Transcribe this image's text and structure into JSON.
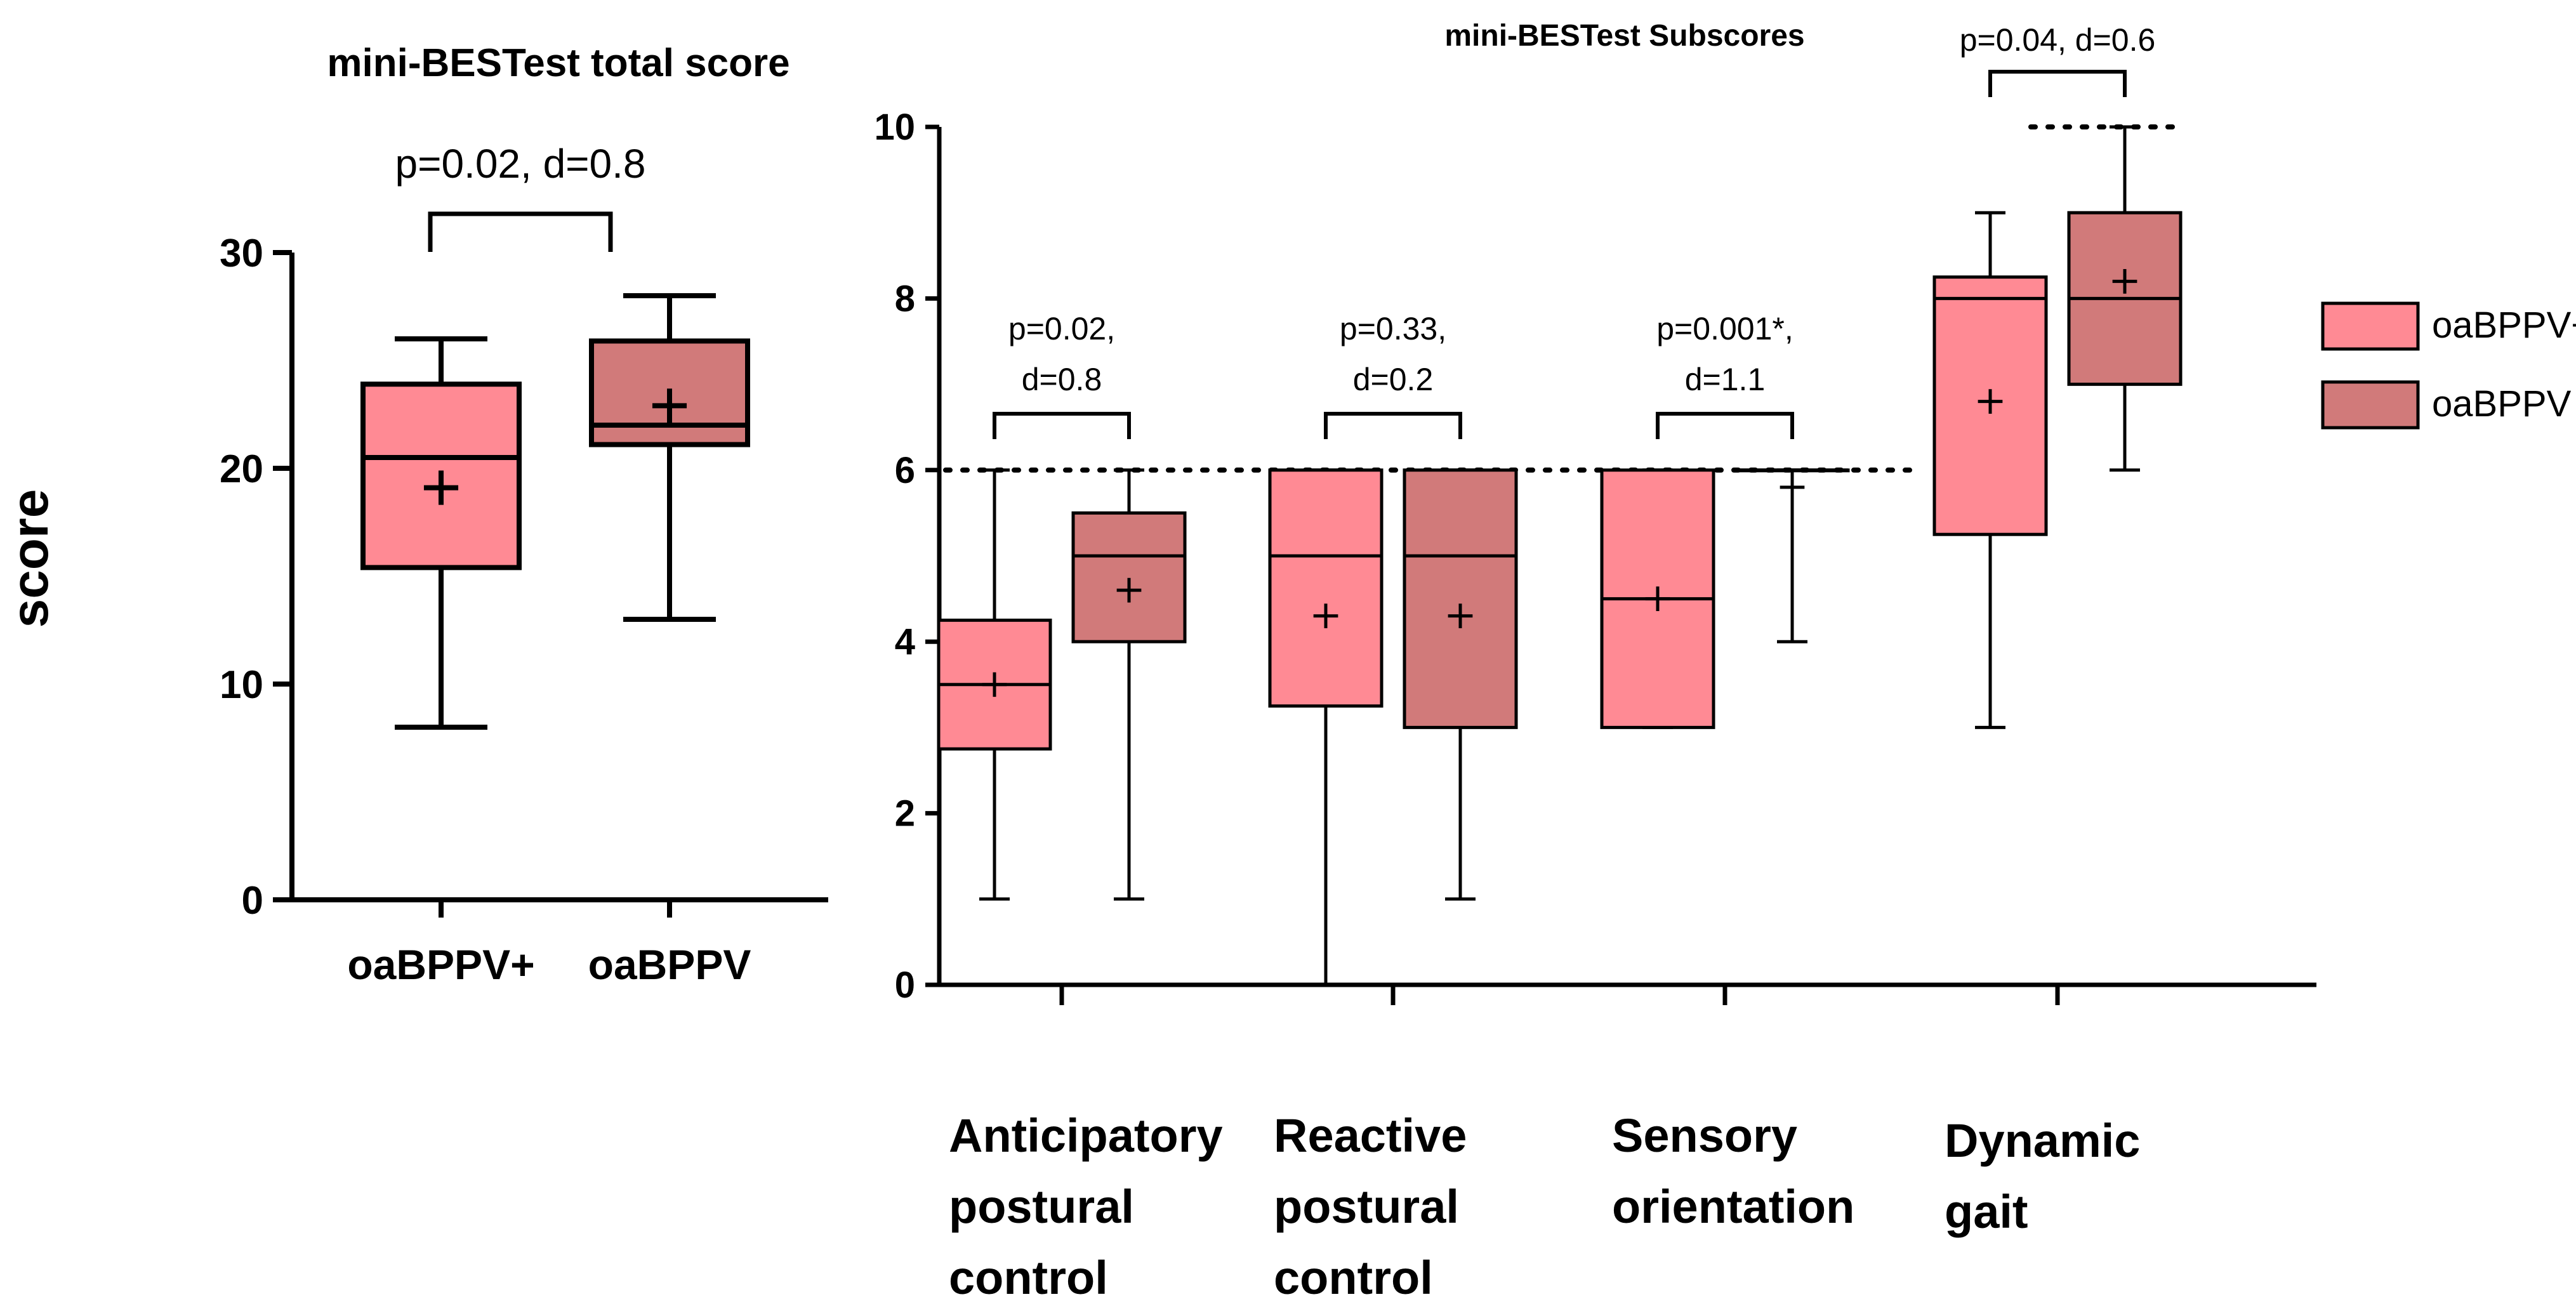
{
  "y_axis_label": "score",
  "colors": {
    "series_plus": "#ff8a94",
    "series_minus": "#d17a7a",
    "stroke": "#000000"
  },
  "chart_data": [
    {
      "type": "box",
      "title": "mini-BESTest total score",
      "ylabel": "score",
      "ylim": [
        0,
        30
      ],
      "yticks": [
        0,
        10,
        20,
        30
      ],
      "categories": [
        "oaBPPV+",
        "oaBPPV"
      ],
      "series": [
        {
          "name": "oaBPPV+",
          "min": 8,
          "q1": 15.4,
          "median": 20.5,
          "q3": 23.9,
          "max": 26,
          "mean": 19.1
        },
        {
          "name": "oaBPPV",
          "min": 13,
          "q1": 21.1,
          "median": 22,
          "q3": 25.9,
          "max": 28,
          "mean": 22.9
        }
      ],
      "annotations": [
        {
          "lines": [
            "p=0.02, d=0.8"
          ]
        }
      ]
    },
    {
      "type": "box",
      "title": "mini-BESTest Subscores",
      "ylim": [
        0,
        10
      ],
      "yticks": [
        0,
        2,
        4,
        6,
        8,
        10
      ],
      "categories": [
        "Anticipatory postural control",
        "Reactive postural control",
        "Sensory orientation",
        "Dynamic gait"
      ],
      "category_lines": [
        [
          "Anticipatory",
          "postural",
          "control"
        ],
        [
          "Reactive",
          "postural",
          "control"
        ],
        [
          "Sensory",
          "orientation"
        ],
        [
          "Dynamic",
          "gait"
        ]
      ],
      "max_score_lines": [
        6,
        6,
        6,
        10
      ],
      "legend": {
        "position": "right",
        "entries": [
          "oaBPPV+",
          "oaBPPV"
        ]
      },
      "series": [
        {
          "name": "oaBPPV+",
          "boxes": [
            {
              "min": 1,
              "q1": 2.75,
              "median": 3.5,
              "q3": 4.25,
              "max": 6,
              "mean": 3.5
            },
            {
              "min": 0,
              "q1": 3.25,
              "median": 5,
              "q3": 6,
              "max": 6,
              "mean": 4.3
            },
            {
              "min": 3,
              "q1": 3,
              "median": 4.5,
              "q3": 6,
              "max": 6,
              "mean": 4.5
            },
            {
              "min": 3,
              "q1": 5.25,
              "median": 8,
              "q3": 8.25,
              "max": 9,
              "mean": 6.8
            }
          ]
        },
        {
          "name": "oaBPPV",
          "boxes": [
            {
              "min": 1,
              "q1": 4,
              "median": 5,
              "q3": 5.5,
              "max": 6,
              "mean": 4.6
            },
            {
              "min": 1,
              "q1": 3,
              "median": 5,
              "q3": 6,
              "max": 6,
              "mean": 4.3
            },
            {
              "min": 4,
              "q1": 6,
              "median": 6,
              "q3": 6,
              "max": 6,
              "mean": 5.8
            },
            {
              "min": 6,
              "q1": 7,
              "median": 8,
              "q3": 9,
              "max": 10,
              "mean": 8.2
            }
          ]
        }
      ],
      "annotations": [
        {
          "lines": [
            "p=0.02,",
            "d=0.8"
          ]
        },
        {
          "lines": [
            "p=0.33,",
            "d=0.2"
          ]
        },
        {
          "lines": [
            "p=0.001*,",
            "d=1.1"
          ]
        },
        {
          "lines": [
            "p=0.04, d=0.6"
          ]
        }
      ]
    }
  ]
}
